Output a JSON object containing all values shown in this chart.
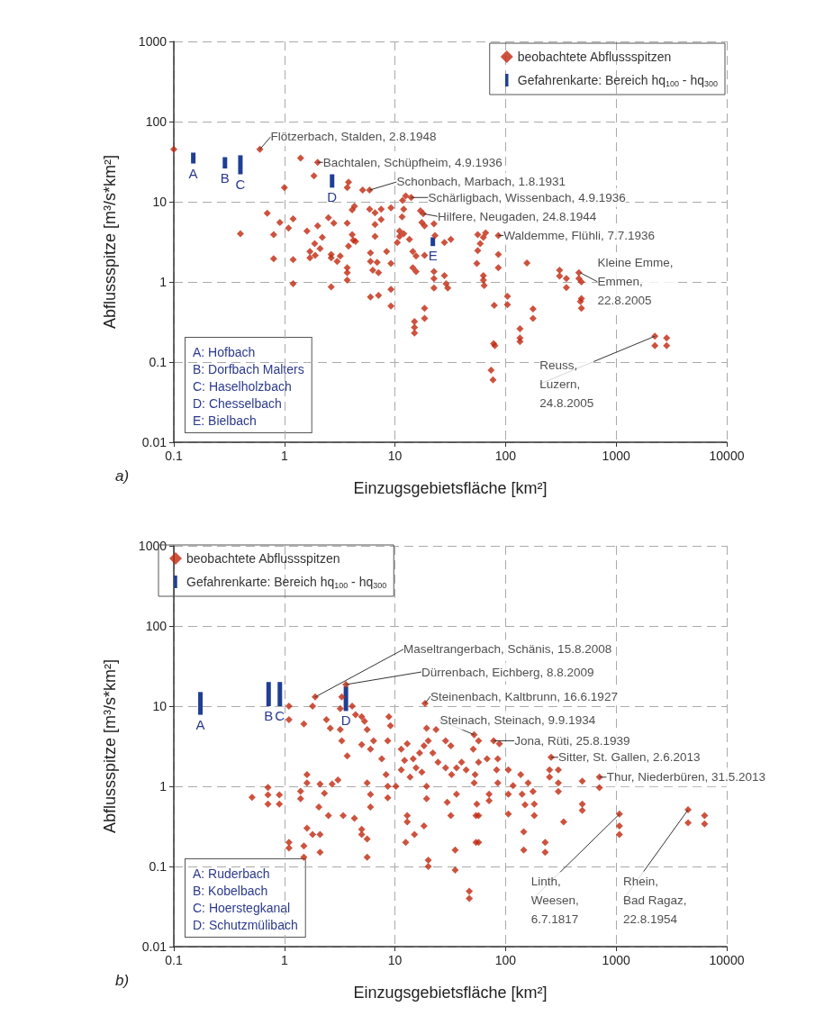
{
  "chart_data": [
    {
      "type": "scatter",
      "title": "a)",
      "xlabel": "Einzugsgebietsfläche [km²]",
      "ylabel": "Abflussspitze [m³/s*km²]",
      "xlim": [
        0.1,
        10000
      ],
      "ylim": [
        0.01,
        1000
      ],
      "xticks": [
        0.1,
        1,
        10,
        100,
        1000,
        10000
      ],
      "yticks": [
        0.01,
        0.1,
        1,
        10,
        100,
        1000
      ],
      "log": "xy",
      "grid": true,
      "legend": "top right",
      "annotations": [
        "A: Hofbach",
        "B: Dorfbach Malters",
        "C: Haselholzbach",
        "D: Chesselbach",
        "E: Bielbach",
        {
          "text": "Flötzerbach, Stalden, 2.8.1948",
          "x": 0.6,
          "y": 45
        },
        {
          "text": "Bachtalen, Schüpfheim, 4.9.1936",
          "x": 2,
          "y": 31
        },
        {
          "text": "Schonbach, Marbach, 1.8.1931",
          "x": 5.9,
          "y": 14
        },
        {
          "text": "Schärligbach, Wissenbach, 4.9.1936",
          "x": 14,
          "y": 11.3
        },
        {
          "text": "Hilfere, Neugaden, 24.8.1944",
          "x": 18,
          "y": 7.1
        },
        {
          "text": "Waldemme, Flühli, 7.7.1936",
          "x": 86,
          "y": 3.8
        },
        {
          "text": "Kleine Emme,\nEmmen,\n22.8.2005",
          "x": 475,
          "y": 1.3
        },
        {
          "text": "Reuss,\nLuzern,\n24.8.2005",
          "x": 2240,
          "y": 0.21
        }
      ],
      "series": [
        {
          "name": "beobachtete Abflussspitzen",
          "marker": "diamond",
          "color": "#c0280f",
          "x": [
            0.1,
            0.6,
            1.4,
            2,
            1.85,
            1,
            3.8,
            3.7,
            5.1,
            5.9,
            0.4,
            0.7,
            0.8,
            0.8,
            0.91,
            1.09,
            1.2,
            1.2,
            1.2,
            1.6,
            1.88,
            2,
            2.2,
            1.7,
            1.7,
            1.9,
            2.1,
            2.5,
            2.8,
            2.65,
            2.65,
            3,
            3.2,
            2.65,
            3.7,
            4.1,
            4.3,
            4.1,
            4.2,
            3.8,
            4.4,
            3.7,
            3.7,
            3.7,
            5.9,
            6.6,
            7.5,
            7.5,
            6.6,
            6.6,
            9.2,
            6,
            6,
            6.3,
            6.9,
            7.1,
            8.4,
            9.2,
            9.2,
            9.2,
            6,
            7.1,
            11.7,
            12,
            11.6,
            12.5,
            14,
            11,
            11,
            10.5,
            12,
            13.5,
            14.5,
            15.5,
            14.5,
            15.5,
            18.5,
            17,
            18,
            17.5,
            18.5,
            22.5,
            23,
            22.5,
            22.5,
            22.5,
            18.5,
            18.5,
            15,
            15,
            15,
            28,
            32,
            28,
            29,
            30,
            56,
            59,
            63,
            66,
            56,
            55,
            63,
            64,
            63,
            86,
            86,
            86,
            79,
            104,
            104,
            78,
            80,
            74,
            77,
            156,
            135,
            135,
            135,
            177,
            177,
            308,
            308,
            355,
            355,
            460,
            460,
            485,
            485,
            485,
            475,
            2240,
            2240,
            2860,
            2860
          ],
          "values": [
            45,
            45,
            35,
            31,
            21,
            15,
            17.5,
            15,
            14,
            14,
            4,
            7.2,
            3.9,
            1.95,
            5.5,
            4.7,
            6.1,
            1.9,
            0.95,
            4.3,
            3,
            5,
            3.6,
            2.4,
            2,
            2.15,
            2.6,
            6.3,
            5.4,
            2.2,
            2,
            1.8,
            2.1,
            0.87,
            5.4,
            7.9,
            8.8,
            3.9,
            3.3,
            2.8,
            3.2,
            1.5,
            1.3,
            1.05,
            8.1,
            7.3,
            8.1,
            6,
            5.2,
            3.7,
            8.4,
            2.3,
            1.8,
            1.4,
            1.75,
            1.3,
            2.4,
            1.7,
            0.81,
            0.5,
            0.65,
            0.68,
            10.4,
            8.1,
            6.5,
            11.8,
            11.3,
            4.3,
            3.7,
            3.1,
            4,
            3.4,
            2.4,
            2.1,
            1.5,
            1.35,
            2.15,
            7.7,
            7.1,
            5.5,
            5,
            5.3,
            3.8,
            1.35,
            1.1,
            0.84,
            0.47,
            0.35,
            0.32,
            0.27,
            0.23,
            3.1,
            3.4,
            1.2,
            0.95,
            0.84,
            3.9,
            3,
            3.6,
            4.1,
            2.45,
            1.7,
            1.2,
            0.9,
            1.05,
            3.8,
            2.2,
            1.5,
            0.51,
            0.66,
            0.52,
            0.17,
            0.16,
            0.079,
            0.06,
            1.72,
            0.26,
            0.2,
            0.18,
            0.46,
            0.35,
            1.4,
            1.18,
            1.1,
            0.85,
            1.3,
            1.1,
            1,
            0.62,
            0.47,
            0.57,
            0.21,
            0.16,
            0.2,
            0.16
          ]
        },
        {
          "name": "Gefahrenkarte: Bereich hq$_{100}$ - hq$_{300}$",
          "type": "bar",
          "color": "#1f3f94",
          "x": [
            0.15,
            0.29,
            0.4,
            2.7,
            22
          ],
          "base": [
            30,
            26,
            22,
            15,
            2.8
          ],
          "values": [
            11,
            10,
            16,
            7,
            0.8
          ],
          "value_labels": [
            "A",
            "B",
            "C",
            "D",
            "E"
          ]
        }
      ]
    },
    {
      "type": "scatter",
      "title": "b)",
      "xlabel": "Einzugsgebietsfläche [km²]",
      "ylabel": "Abflussspitze [m³/s*km²]",
      "xlim": [
        0.1,
        10000
      ],
      "ylim": [
        0.01,
        1000
      ],
      "xticks": [
        0.1,
        1,
        10,
        100,
        1000,
        10000
      ],
      "yticks": [
        0.01,
        0.1,
        1,
        10,
        100,
        1000
      ],
      "log": "xy",
      "grid": true,
      "legend": "top left",
      "annotations": [
        "A: Ruderbach",
        "B: Kobelbach",
        "C: Hoerstegkanal",
        "D: Schutzmülibach",
        {
          "text": "Maseltrangerbach, Schänis, 15.8.2008",
          "x": 1.9,
          "y": 13
        },
        {
          "text": "Dürrenbach, Eichberg, 8.8.2009",
          "x": 3.6,
          "y": 18.6
        },
        {
          "text": "Steinenbach, Kaltbrunn, 16.6.1927",
          "x": 18.7,
          "y": 10.8
        },
        {
          "text": "Steinach, Steinach, 9.9.1934",
          "x": 52,
          "y": 4.4
        },
        {
          "text": "Jona, Rüti, 25.8.1939",
          "x": 78,
          "y": 3.7
        },
        {
          "text": "Sitter, St. Gallen, 2.6.2013",
          "x": 258,
          "y": 2.3
        },
        {
          "text": "Thur, Niederbüren, 31.5.2013",
          "x": 706,
          "y": 1.3
        },
        {
          "text": "Linth,\nWeesen,\n6.7.1817",
          "x": 1070,
          "y": 0.45
        },
        {
          "text": "Rhein,\nBad Ragaz,\n22.8.1954",
          "x": 4470,
          "y": 0.51
        }
      ],
      "series": [
        {
          "name": "beobachtete Abflussspitzen",
          "marker": "diamond",
          "color": "#c0280f",
          "x": [
            0.51,
            0.71,
            0.71,
            0.71,
            0.9,
            0.9,
            1.1,
            1.1,
            1.5,
            1.8,
            1.9,
            3.6,
            3.3,
            3.2,
            4.1,
            2.4,
            2.6,
            3.2,
            3.3,
            3.7,
            4.4,
            5,
            5.3,
            5.6,
            5,
            6.4,
            6,
            7.6,
            8.3,
            8.8,
            9.1,
            8.6,
            1.6,
            1.6,
            1.4,
            1.4,
            2.1,
            2.3,
            3.05,
            2.7,
            2.05,
            2.5,
            3.4,
            4.3,
            5,
            5,
            5.6,
            5.6,
            6,
            6,
            5.6,
            8.6,
            8.6,
            10.2,
            1.6,
            1.8,
            2.1,
            1.1,
            1.1,
            1.5,
            1.5,
            2.1,
            11.4,
            12.9,
            14.6,
            16.7,
            18.3,
            20,
            12.2,
            11.4,
            13.7,
            15.5,
            17.5,
            19.3,
            19.3,
            12.9,
            12.9,
            15,
            12.5,
            18.3,
            20,
            20,
            18.7,
            19.3,
            23.5,
            22,
            24.5,
            28.7,
            32,
            28.7,
            32.5,
            29.7,
            32,
            35,
            35,
            36,
            40,
            44,
            51,
            47,
            47,
            52,
            54,
            54,
            36,
            52,
            57,
            78,
            88,
            57,
            53,
            55,
            57,
            57,
            68,
            71,
            71,
            83,
            85,
            85,
            106,
            106,
            106,
            117,
            137,
            141,
            150,
            160,
            177,
            182,
            182,
            146,
            146,
            228,
            228,
            258,
            250,
            250,
            300,
            300,
            300,
            335,
            494,
            494,
            494,
            706,
            706,
            1070,
            1070,
            1070,
            4470,
            4470,
            6300,
            6300
          ],
          "values": [
            0.73,
            0.97,
            0.78,
            0.6,
            0.78,
            0.6,
            10,
            6.8,
            6,
            10,
            13,
            18.6,
            13,
            9.3,
            10,
            6.8,
            5.3,
            5.1,
            3.7,
            2.4,
            7.8,
            7.4,
            6.5,
            5.1,
            3.3,
            3.7,
            2.9,
            2.2,
            1.4,
            7.4,
            5.7,
            3.7,
            1.4,
            1.1,
            0.87,
            0.7,
            1.07,
            0.82,
            1.2,
            1.07,
            0.55,
            0.43,
            0.43,
            0.4,
            0.29,
            0.25,
            0.13,
            0.22,
            0.55,
            0.79,
            1.1,
            0.72,
            1,
            1,
            0.3,
            0.25,
            0.25,
            0.2,
            0.17,
            0.18,
            0.13,
            0.15,
            2.9,
            3.4,
            2.2,
            2.6,
            3.2,
            3.7,
            2.1,
            1.6,
            1.3,
            1.7,
            1.5,
            1,
            0.7,
            0.43,
            0.36,
            0.25,
            0.2,
            0.32,
            0.12,
            0.1,
            10.8,
            5.3,
            5.1,
            2.6,
            2,
            3.7,
            3.2,
            1.7,
            1.4,
            0.63,
            0.43,
            0.16,
            0.09,
            1.7,
            2,
            1.6,
            2.9,
            0.049,
            0.04,
            1.1,
            0.43,
            0.2,
            0.8,
            4.4,
            3.7,
            3.7,
            3.4,
            2,
            1.4,
            0.6,
            0.43,
            0.2,
            2.2,
            0.8,
            0.66,
            1.6,
            1.1,
            2.2,
            1.6,
            0.8,
            0.45,
            1.02,
            1.4,
            0.8,
            0.59,
            1.1,
            0.86,
            0.6,
            0.43,
            0.27,
            0.16,
            0.2,
            0.15,
            2.3,
            1.6,
            1.3,
            1.6,
            1.1,
            0.86,
            0.36,
            1.16,
            0.6,
            0.5,
            1.3,
            0.96,
            0.45,
            0.32,
            0.25,
            0.51,
            0.35,
            0.43,
            0.34
          ]
        },
        {
          "name": "Gefahrenkarte: Bereich hq$_{100}$ - hq$_{300}$",
          "type": "bar",
          "color": "#1f3f94",
          "x": [
            0.174,
            0.72,
            0.91,
            3.6
          ],
          "base": [
            7.8,
            10,
            10,
            8.7
          ],
          "values": [
            7.2,
            10,
            10,
            8.9
          ],
          "value_labels": [
            "A",
            "B",
            "C",
            "D"
          ]
        }
      ]
    }
  ]
}
